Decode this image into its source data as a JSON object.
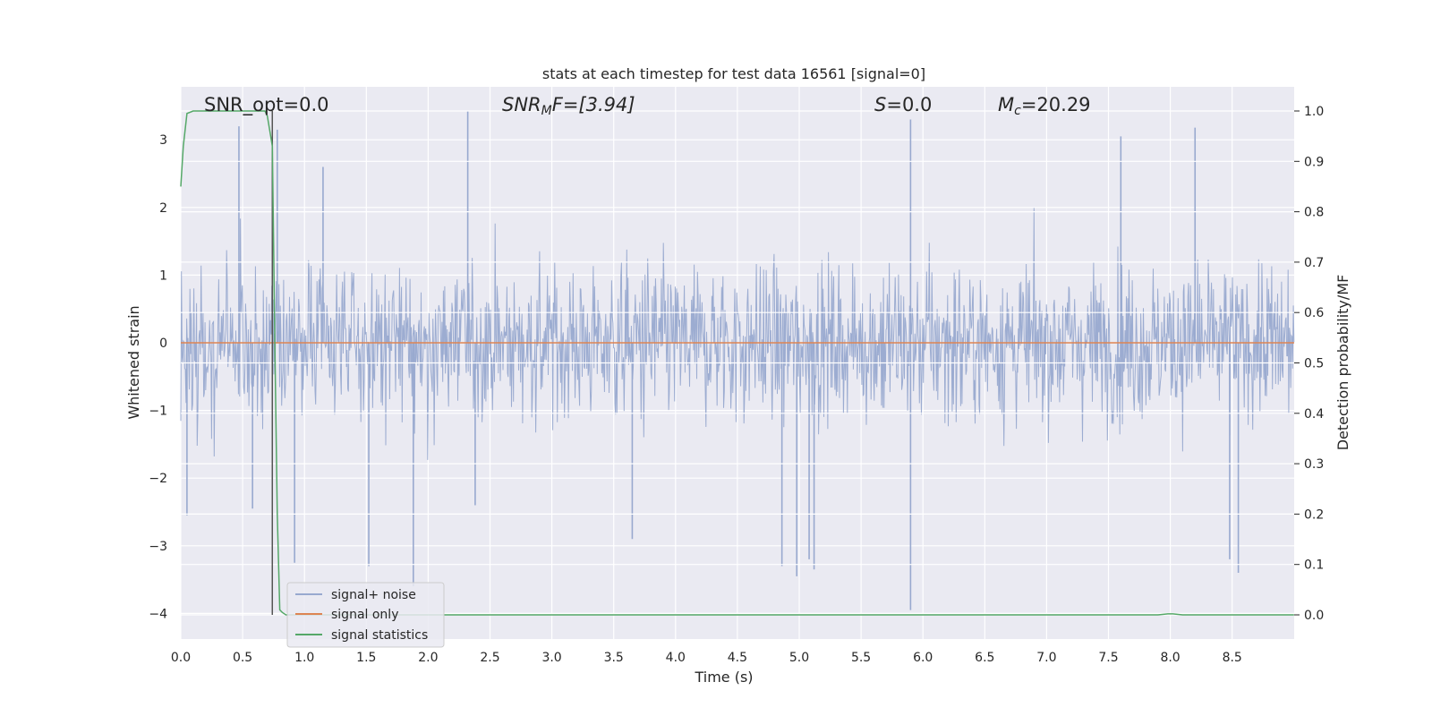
{
  "chart_data": {
    "type": "line",
    "title": "stats at each timestep for test data 16561 [signal=0]",
    "xlabel": "Time (s)",
    "ylabel": "Whitened strain",
    "y2label": "Detection probability/MF",
    "xlim": [
      0,
      9.0
    ],
    "ylim": [
      -4.35,
      3.55
    ],
    "y2lim": [
      -0.048,
      1.048
    ],
    "grid": true,
    "legend_position": "lower-left",
    "xticks": [
      "0.0",
      "0.5",
      "1.0",
      "1.5",
      "2.0",
      "2.5",
      "3.0",
      "3.5",
      "4.0",
      "4.5",
      "5.0",
      "5.5",
      "6.0",
      "6.5",
      "7.0",
      "7.5",
      "8.0",
      "8.5"
    ],
    "xtick_values": [
      0,
      0.5,
      1.0,
      1.5,
      2.0,
      2.5,
      3.0,
      3.5,
      4.0,
      4.5,
      5.0,
      5.5,
      6.0,
      6.5,
      7.0,
      7.5,
      8.0,
      8.5
    ],
    "yticks": [
      "3",
      "2",
      "1",
      "0",
      "−1",
      "−2",
      "−3",
      "−4"
    ],
    "ytick_values": [
      3,
      2,
      1,
      0,
      -1,
      -2,
      -3,
      -4
    ],
    "y2ticks": [
      "1.0",
      "0.9",
      "0.8",
      "0.7",
      "0.6",
      "0.5",
      "0.4",
      "0.3",
      "0.2",
      "0.1",
      "0.0"
    ],
    "y2tick_values": [
      1.0,
      0.9,
      0.8,
      0.7,
      0.6,
      0.5,
      0.4,
      0.3,
      0.2,
      0.1,
      0.0
    ],
    "annotations": {
      "snr_opt": "SNR_opt=0.0",
      "snr_mf_main": "SNR",
      "snr_mf_sub": "M",
      "snr_mf_rest": "F=[3.94]",
      "s_main": "S",
      "s_rest": "=0.0",
      "mc_main": "M",
      "mc_sub": "c",
      "mc_rest": "=20.29"
    },
    "vertical_marker_x": 0.74,
    "series": [
      {
        "name": "signal+ noise",
        "color": "#98a9cf",
        "axis": "left",
        "description_values": "whitened noise strain, roughly within ±2 with peaks up to ~3.4 and troughs down to ~-3.9",
        "peaks": [
          [
            0.05,
            -2.55
          ],
          [
            0.47,
            3.2
          ],
          [
            0.58,
            -2.45
          ],
          [
            0.78,
            3.15
          ],
          [
            0.92,
            -3.25
          ],
          [
            1.15,
            2.6
          ],
          [
            1.52,
            -3.3
          ],
          [
            1.88,
            -3.6
          ],
          [
            2.32,
            3.42
          ],
          [
            2.38,
            -2.4
          ],
          [
            3.65,
            -2.9
          ],
          [
            4.86,
            -3.3
          ],
          [
            4.98,
            -3.45
          ],
          [
            5.08,
            -3.2
          ],
          [
            5.12,
            -3.35
          ],
          [
            5.9,
            3.3
          ],
          [
            5.9,
            -3.95
          ],
          [
            7.6,
            3.05
          ],
          [
            8.2,
            3.18
          ],
          [
            8.48,
            -3.2
          ],
          [
            8.55,
            -3.4
          ]
        ]
      },
      {
        "name": "signal only",
        "color": "#dd8452",
        "axis": "left",
        "values_constant": 0
      },
      {
        "name": "signal statistics",
        "color": "#55a868",
        "axis": "right",
        "x": [
          0.0,
          0.02,
          0.05,
          0.1,
          0.15,
          0.3,
          0.5,
          0.68,
          0.7,
          0.74,
          0.76,
          0.78,
          0.8,
          0.82,
          0.85,
          0.9,
          1.0,
          2.0,
          3.0,
          4.0,
          5.0,
          6.0,
          7.0,
          7.9,
          7.98,
          8.02,
          8.1,
          8.5,
          9.0
        ],
        "values": [
          0.85,
          0.93,
          0.995,
          1.0,
          1.0,
          1.0,
          1.0,
          1.0,
          0.99,
          0.93,
          0.55,
          0.2,
          0.01,
          0.005,
          0.0,
          0.0,
          0.0,
          0.0,
          0.0,
          0.0,
          0.0,
          0.0,
          0.0,
          0.0,
          0.002,
          0.002,
          0.0,
          0.0,
          0.0
        ]
      }
    ]
  }
}
